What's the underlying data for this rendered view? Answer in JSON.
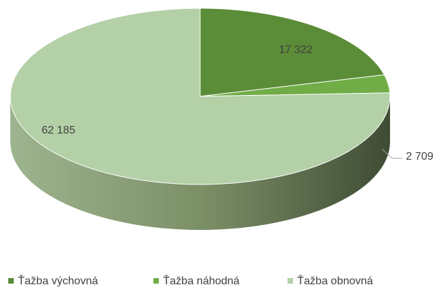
{
  "chart_data": {
    "type": "pie3d",
    "categories": [
      "Ťažba výchovná",
      "Ťažba náhodná",
      "Ťažba obnovná"
    ],
    "values": [
      17322,
      2709,
      62185
    ],
    "value_labels": [
      "17 322",
      "2 709",
      "62 185"
    ],
    "colors": [
      "#5b8c38",
      "#70ad47",
      "#b3d0a6"
    ],
    "legend": "bottom"
  }
}
